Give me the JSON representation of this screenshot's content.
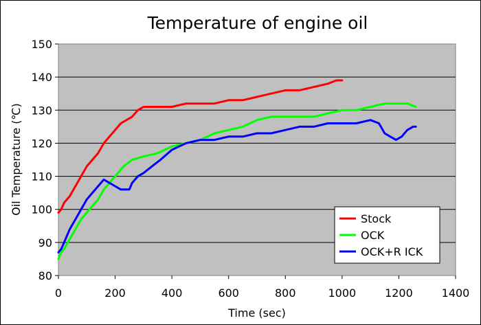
{
  "chart_data": {
    "type": "line",
    "title": "Temperature of engine oil",
    "xlabel": "Time (sec)",
    "ylabel": "Oil Temperature (℃)",
    "xlim": [
      0,
      1400
    ],
    "ylim": [
      80,
      150
    ],
    "xticks": [
      "0",
      "200",
      "400",
      "600",
      "800",
      "1000",
      "1200",
      "1400"
    ],
    "yticks": [
      "80",
      "90",
      "100",
      "110",
      "120",
      "130",
      "140",
      "150"
    ],
    "grid": "horizontal",
    "legend_position": "bottom-right",
    "plot_background": "#C0C0C0",
    "series": [
      {
        "name": "Stock",
        "color": "#FF0000",
        "x": [
          0,
          10,
          20,
          40,
          60,
          80,
          100,
          120,
          140,
          160,
          180,
          200,
          220,
          240,
          260,
          280,
          300,
          350,
          400,
          450,
          500,
          550,
          600,
          650,
          700,
          750,
          800,
          850,
          900,
          950,
          980,
          1000
        ],
        "y": [
          99,
          100,
          102,
          104,
          107,
          110,
          113,
          115,
          117,
          120,
          122,
          124,
          126,
          127,
          128,
          130,
          131,
          131,
          131,
          132,
          132,
          132,
          133,
          133,
          134,
          135,
          136,
          136,
          137,
          138,
          139,
          139
        ]
      },
      {
        "name": "OCK",
        "color": "#00FF00",
        "x": [
          0,
          10,
          20,
          40,
          60,
          80,
          100,
          120,
          140,
          160,
          180,
          200,
          230,
          260,
          300,
          350,
          400,
          450,
          500,
          550,
          600,
          650,
          700,
          750,
          800,
          850,
          900,
          950,
          1000,
          1050,
          1100,
          1150,
          1200,
          1230,
          1260
        ],
        "y": [
          85,
          87,
          88,
          91,
          94,
          97,
          99,
          101,
          103,
          106,
          108,
          110,
          113,
          115,
          116,
          117,
          119,
          120,
          121,
          123,
          124,
          125,
          127,
          128,
          128,
          128,
          128,
          129,
          130,
          130,
          131,
          132,
          132,
          132,
          131
        ]
      },
      {
        "name": "OCK+R ICK",
        "color": "#0000FF",
        "x": [
          0,
          10,
          20,
          40,
          60,
          80,
          100,
          120,
          140,
          150,
          160,
          180,
          200,
          220,
          250,
          260,
          280,
          300,
          330,
          360,
          400,
          450,
          500,
          550,
          600,
          650,
          700,
          750,
          800,
          850,
          900,
          950,
          1000,
          1050,
          1100,
          1130,
          1150,
          1170,
          1190,
          1210,
          1230,
          1250,
          1260
        ],
        "y": [
          87,
          88,
          90,
          94,
          97,
          100,
          103,
          105,
          107,
          108,
          109,
          108,
          107,
          106,
          106,
          108,
          110,
          111,
          113,
          115,
          118,
          120,
          121,
          121,
          122,
          122,
          123,
          123,
          124,
          125,
          125,
          126,
          126,
          126,
          127,
          126,
          123,
          122,
          121,
          122,
          124,
          125,
          125
        ]
      }
    ]
  }
}
